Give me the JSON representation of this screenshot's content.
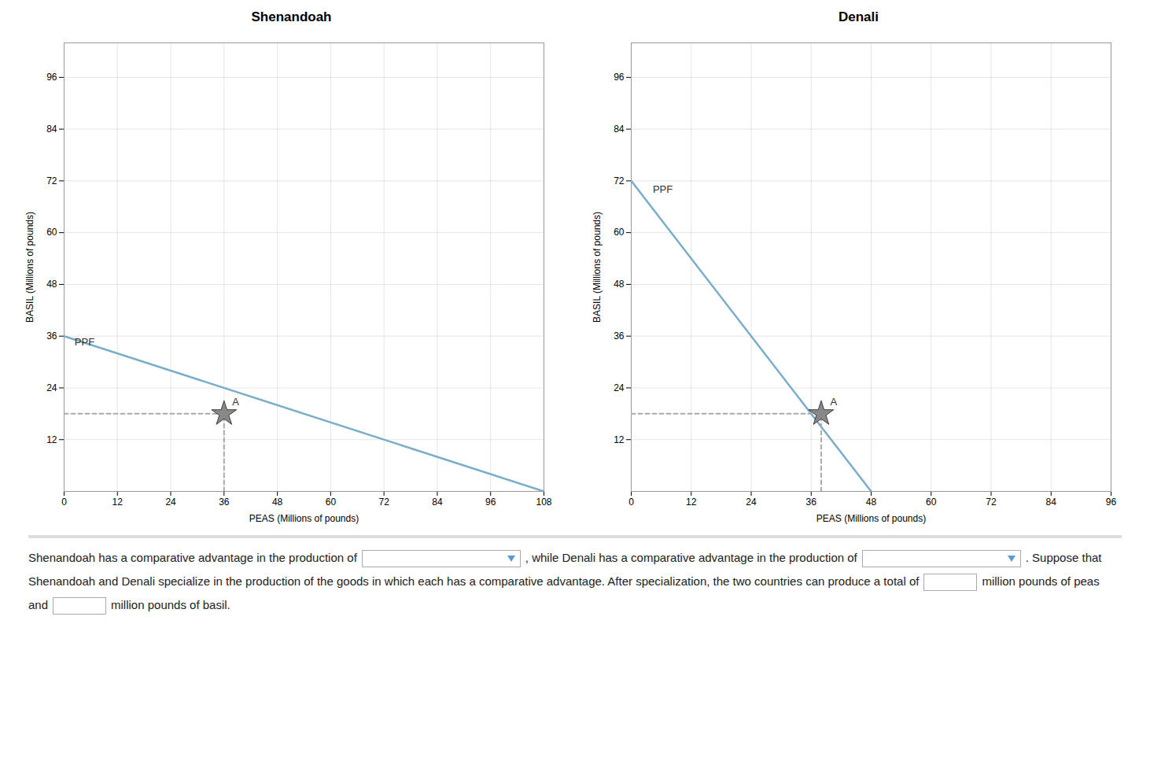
{
  "chart_data": [
    {
      "type": "line",
      "title": "Shenandoah",
      "xlabel": "PEAS (Millions of pounds)",
      "ylabel": "BASIL (Millions of pounds)",
      "xlim": [
        0,
        108
      ],
      "xticks": [
        0,
        12,
        24,
        36,
        48,
        60,
        72,
        84,
        96,
        108
      ],
      "ylim": [
        0,
        104
      ],
      "yticks": [
        12,
        24,
        36,
        48,
        60,
        72,
        84,
        96
      ],
      "grid": true,
      "series": [
        {
          "type": "line",
          "color": "#7aaec8",
          "line_style": "solid",
          "x": [
            0,
            108
          ],
          "values": [
            36,
            0
          ]
        },
        {
          "type": "line",
          "color": "#aaaaaa",
          "line_style": "dashed",
          "x": [
            0,
            36
          ],
          "values": [
            18,
            18
          ]
        },
        {
          "type": "line",
          "color": "#aaaaaa",
          "line_style": "dashed",
          "x": [
            36,
            36
          ],
          "values": [
            0,
            18
          ]
        },
        {
          "type": "scatter",
          "color": "#888888",
          "marker": "star",
          "x": [
            36
          ],
          "values": [
            18
          ]
        }
      ],
      "annotations": [
        {
          "text": "PPF",
          "x": 2,
          "y": 35.5
        },
        {
          "text": "A",
          "x": 37.5,
          "y": 20
        }
      ]
    },
    {
      "type": "line",
      "title": "Denali",
      "xlabel": "PEAS (Millions of pounds)",
      "ylabel": "BASIL (Millions of pounds)",
      "xlim": [
        0,
        96
      ],
      "xticks": [
        0,
        12,
        24,
        36,
        48,
        60,
        72,
        84,
        96
      ],
      "ylim": [
        0,
        104
      ],
      "yticks": [
        12,
        24,
        36,
        48,
        60,
        72,
        84,
        96
      ],
      "grid": true,
      "series": [
        {
          "type": "line",
          "color": "#7aaec8",
          "line_style": "solid",
          "x": [
            0,
            48
          ],
          "values": [
            72,
            0
          ]
        },
        {
          "type": "line",
          "color": "#aaaaaa",
          "line_style": "dashed",
          "x": [
            0,
            38
          ],
          "values": [
            18,
            18
          ]
        },
        {
          "type": "line",
          "color": "#aaaaaa",
          "line_style": "dashed",
          "x": [
            38,
            38
          ],
          "values": [
            0,
            18
          ]
        },
        {
          "type": "scatter",
          "color": "#888888",
          "marker": "star",
          "x": [
            38
          ],
          "values": [
            18
          ]
        }
      ],
      "annotations": [
        {
          "text": "PPF",
          "x": 4,
          "y": 71
        },
        {
          "text": "A",
          "x": 39.5,
          "y": 20
        }
      ]
    }
  ],
  "caption": [
    "Shenandoah has a comparative advantage in the production of",
    ", while Denali has a comparative advantage in the production of",
    ". Suppose that Shenandoah and Denali specialize in the production of the goods in which each has a comparative advantage. After specialization, the two countries can produce a total of",
    "million pounds of peas and",
    "million pounds of basil."
  ]
}
